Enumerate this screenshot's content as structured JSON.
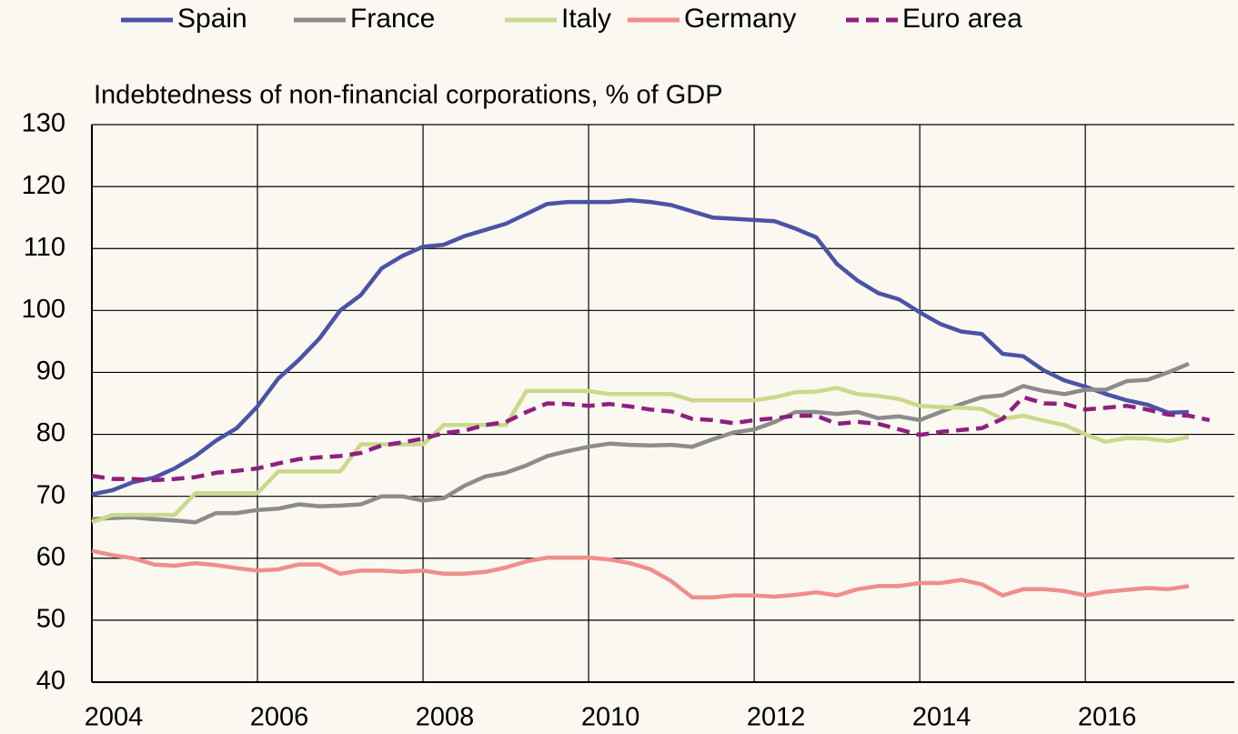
{
  "chart_data": {
    "type": "line",
    "y_axis_title": "Indebtedness of non-financial corporations, % of GDP",
    "x": [
      2004,
      2004.25,
      2004.5,
      2004.75,
      2005,
      2005.25,
      2005.5,
      2005.75,
      2006,
      2006.25,
      2006.5,
      2006.75,
      2007,
      2007.25,
      2007.5,
      2007.75,
      2008,
      2008.25,
      2008.5,
      2008.75,
      2009,
      2009.25,
      2009.5,
      2009.75,
      2010,
      2010.25,
      2010.5,
      2010.75,
      2011,
      2011.25,
      2011.5,
      2011.75,
      2012,
      2012.25,
      2012.5,
      2012.75,
      2013,
      2013.25,
      2013.5,
      2013.75,
      2014,
      2014.25,
      2014.5,
      2014.75,
      2015,
      2015.25,
      2015.5,
      2015.75,
      2016,
      2016.25,
      2016.5,
      2016.75,
      2017,
      2017.25,
      2017.5
    ],
    "series": [
      {
        "name": "Spain",
        "color": "#4b53a6",
        "values": [
          70.3,
          71,
          72.3,
          73,
          74.5,
          76.5,
          79,
          81,
          84.5,
          89,
          92,
          95.5,
          100,
          102.5,
          106.8,
          108.8,
          110.3,
          110.6,
          112,
          113,
          114,
          115.6,
          117.2,
          117.5,
          117.5,
          117.5,
          117.8,
          117.5,
          117,
          116,
          115,
          114.8,
          114.6,
          114.4,
          113.2,
          111.8,
          107.5,
          104.8,
          102.8,
          101.8,
          99.7,
          97.8,
          96.6,
          96.2,
          93,
          92.6,
          90.3,
          88.7,
          87.7,
          86.5,
          85.5,
          84.8,
          83.5,
          83.6,
          null
        ]
      },
      {
        "name": "France",
        "color": "#8c8c8c",
        "values": [
          66.3,
          66.5,
          66.6,
          66.3,
          66.1,
          65.8,
          67.3,
          67.3,
          67.8,
          68,
          68.7,
          68.4,
          68.5,
          68.7,
          70,
          70,
          69.3,
          69.7,
          71.7,
          73.2,
          73.8,
          75,
          76.5,
          77.3,
          78,
          78.5,
          78.3,
          78.2,
          78.3,
          78,
          79.2,
          80.3,
          80.8,
          82,
          83.6,
          83.6,
          83.3,
          83.6,
          82.6,
          82.9,
          82.3,
          83.6,
          84.9,
          86,
          86.3,
          87.8,
          87,
          86.5,
          87.2,
          87.2,
          88.6,
          88.8,
          90,
          91.4,
          null
        ]
      },
      {
        "name": "Italy",
        "color": "#c9da8b",
        "values": [
          65.8,
          67,
          67,
          67,
          67,
          70.5,
          70.5,
          70.5,
          70.5,
          74,
          74,
          74,
          74,
          78.4,
          78.4,
          78.4,
          78.4,
          81.5,
          81.5,
          81.5,
          81.5,
          87,
          87,
          87,
          87,
          86.5,
          86.5,
          86.5,
          86.5,
          85.5,
          85.5,
          85.5,
          85.5,
          86,
          86.8,
          86.9,
          87.5,
          86.5,
          86.2,
          85.7,
          84.6,
          84.4,
          84.3,
          84.1,
          82.5,
          83,
          82.2,
          81.5,
          80,
          78.8,
          79.4,
          79.3,
          78.9,
          79.6,
          null
        ]
      },
      {
        "name": "Germany",
        "color": "#f08e8c",
        "values": [
          61.2,
          60.5,
          60,
          59,
          58.8,
          59.2,
          58.9,
          58.4,
          58,
          58.2,
          59,
          59,
          57.5,
          58,
          58,
          57.8,
          58,
          57.5,
          57.5,
          57.8,
          58.5,
          59.5,
          60.1,
          60.1,
          60.1,
          59.8,
          59.2,
          58.2,
          56.3,
          53.7,
          53.7,
          54,
          54,
          53.8,
          54.1,
          54.5,
          54,
          55,
          55.5,
          55.5,
          56,
          56,
          56.5,
          55.8,
          54,
          55,
          55,
          54.7,
          54,
          54.6,
          54.9,
          55.2,
          55,
          55.5,
          null
        ]
      },
      {
        "name": "Euro area",
        "color": "#8e1f80",
        "line_style": "dashed",
        "values": [
          73.3,
          72.8,
          72.8,
          72.6,
          72.8,
          73.1,
          73.8,
          74.1,
          74.5,
          75.3,
          76,
          76.3,
          76.5,
          77,
          78.2,
          78.7,
          79.3,
          80.2,
          80.6,
          81.5,
          82,
          83.6,
          85,
          84.9,
          84.6,
          84.9,
          84.5,
          84,
          83.7,
          82.5,
          82.3,
          81.8,
          82.3,
          82.6,
          83,
          83,
          81.7,
          82,
          81.7,
          80.8,
          79.9,
          80.4,
          80.7,
          81,
          82.5,
          86,
          85,
          84.9,
          84,
          84.3,
          84.6,
          84,
          83.2,
          83,
          82.3
        ]
      }
    ],
    "xlim": [
      2004,
      2017.8
    ],
    "xticks": [
      2004,
      2006,
      2008,
      2010,
      2012,
      2014,
      2016
    ],
    "ylim": [
      40,
      130
    ],
    "yticks": [
      40,
      50,
      60,
      70,
      80,
      90,
      100,
      110,
      120,
      130
    ],
    "grid": true,
    "legend": "top"
  }
}
